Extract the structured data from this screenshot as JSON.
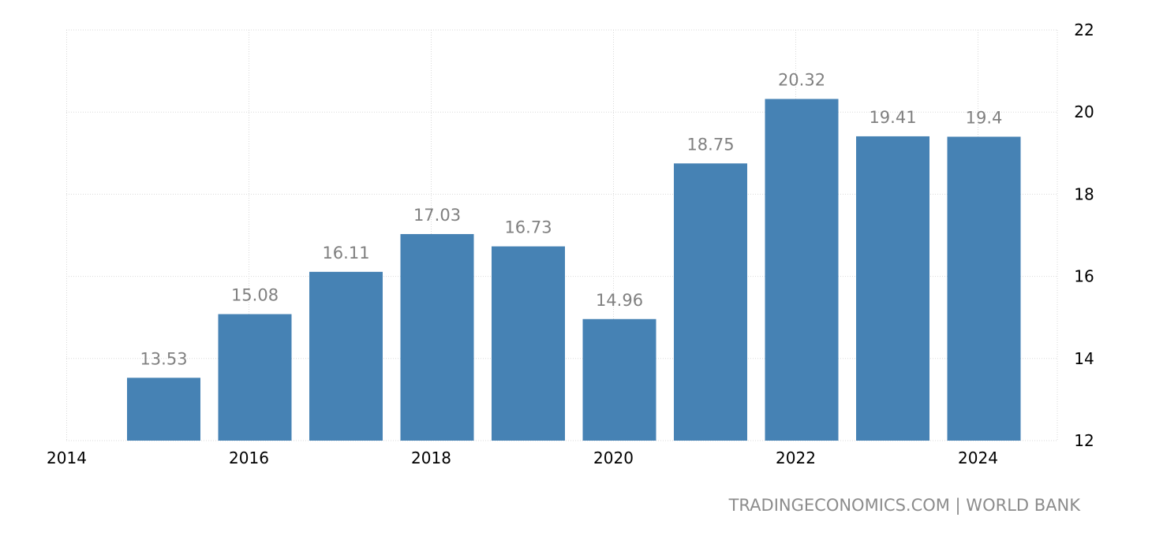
{
  "chart_data": {
    "type": "bar",
    "categories": [
      "2015",
      "2016",
      "2017",
      "2018",
      "2019",
      "2020",
      "2021",
      "2022",
      "2023",
      "2024"
    ],
    "values": [
      13.53,
      15.08,
      16.11,
      17.03,
      16.73,
      14.96,
      18.75,
      20.32,
      19.41,
      19.4
    ],
    "value_labels": [
      "13.53",
      "15.08",
      "16.11",
      "17.03",
      "16.73",
      "14.96",
      "18.75",
      "20.32",
      "19.41",
      "19.4"
    ],
    "x_ticks": [
      "2014",
      "2016",
      "2018",
      "2020",
      "2022",
      "2024"
    ],
    "x_tick_years": [
      2014,
      2016,
      2018,
      2020,
      2022,
      2024
    ],
    "y_ticks": [
      12,
      14,
      16,
      18,
      20,
      22
    ],
    "ylim": [
      12,
      22
    ],
    "grid": true,
    "y_axis_position": "right",
    "bar_color": "#4682b4"
  },
  "source": "TRADINGECONOMICS.COM | WORLD BANK"
}
